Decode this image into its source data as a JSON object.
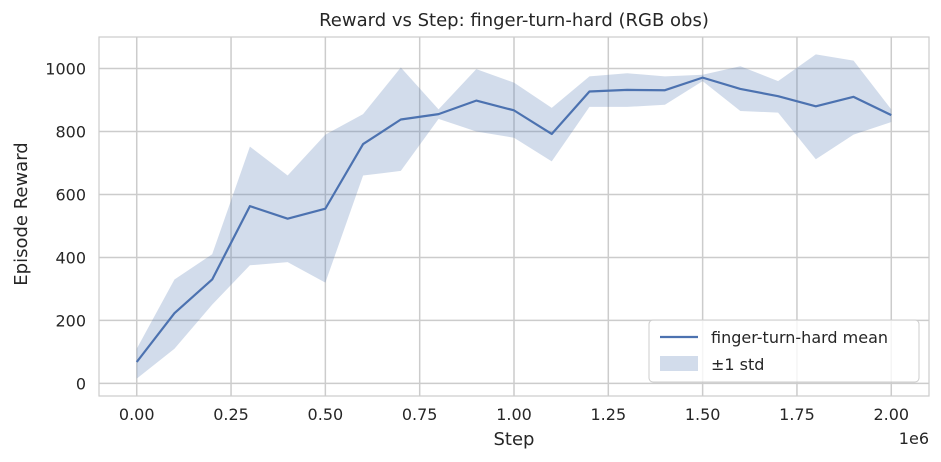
{
  "chart_data": {
    "type": "line",
    "title": "Reward vs Step: finger-turn-hard (RGB obs)",
    "xlabel": "Step",
    "ylabel": "Episode Reward",
    "x_offset_label": "1e6",
    "xlim": [
      -0.1,
      2.1
    ],
    "ylim": [
      -40,
      1100
    ],
    "xticks": [
      0.0,
      0.25,
      0.5,
      0.75,
      1.0,
      1.25,
      1.5,
      1.75,
      2.0
    ],
    "xtick_labels": [
      "0.00",
      "0.25",
      "0.50",
      "0.75",
      "1.00",
      "1.25",
      "1.50",
      "1.75",
      "2.00"
    ],
    "yticks": [
      0,
      200,
      400,
      600,
      800,
      1000
    ],
    "ytick_labels": [
      "0",
      "200",
      "400",
      "600",
      "800",
      "1000"
    ],
    "grid": true,
    "legend_position": "lower-right",
    "x": [
      0.0,
      0.1,
      0.2,
      0.3,
      0.4,
      0.5,
      0.6,
      0.7,
      0.8,
      0.9,
      1.0,
      1.1,
      1.2,
      1.3,
      1.4,
      1.5,
      1.6,
      1.7,
      1.8,
      1.9,
      2.0
    ],
    "series": [
      {
        "name": "finger-turn-hard mean",
        "color": "#4c72b0",
        "values": [
          68,
          223,
          330,
          563,
          523,
          555,
          760,
          838,
          855,
          898,
          867,
          792,
          927,
          932,
          931,
          971,
          935,
          912,
          880,
          910,
          852
        ]
      }
    ],
    "band": {
      "name": "±1 std",
      "color": "#4c72b0",
      "upper": [
        110,
        330,
        410,
        752,
        660,
        790,
        855,
        1003,
        870,
        998,
        955,
        875,
        975,
        985,
        975,
        980,
        1007,
        960,
        1045,
        1025,
        870
      ],
      "lower": [
        15,
        110,
        250,
        375,
        385,
        320,
        660,
        675,
        840,
        800,
        780,
        705,
        878,
        878,
        885,
        960,
        865,
        860,
        712,
        790,
        830
      ]
    }
  }
}
